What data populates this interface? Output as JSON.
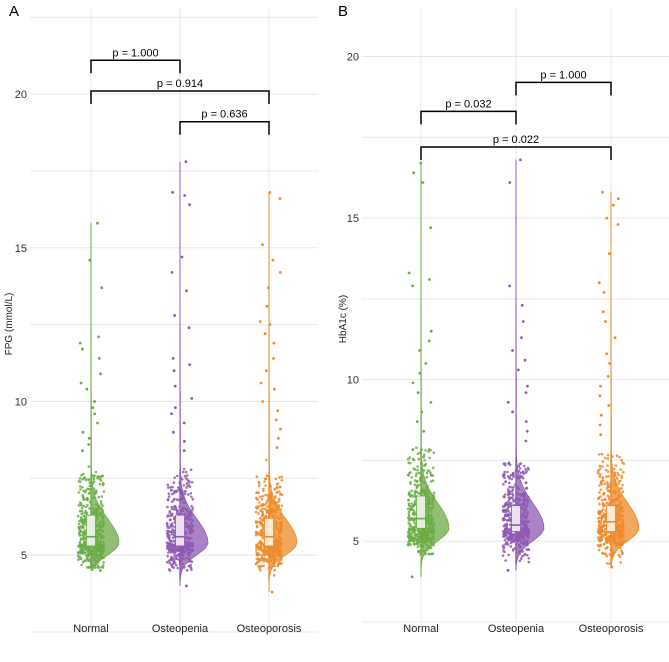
{
  "chart_data": [
    {
      "type": "raincloud",
      "panel": "A",
      "title": "",
      "xlabel": "",
      "ylabel": "FPG (mmol/L)",
      "ylim": [
        2.5,
        22.8
      ],
      "yticks": [
        5,
        10,
        15,
        20
      ],
      "categories": [
        "Normal",
        "Osteopenia",
        "Osteoporosis"
      ],
      "colors": [
        "#6aab45",
        "#8e59b0",
        "#ee8a2a"
      ],
      "groups": [
        {
          "name": "Normal",
          "median": 5.6,
          "q1": 5.3,
          "q3": 6.3,
          "whisker_low": 4.6,
          "whisker_high": 7.6,
          "min": 4.5,
          "max": 15.8,
          "mode": 5.4,
          "outliers": [
            15.8,
            14.6,
            13.7,
            12.1,
            11.9,
            11.7,
            11.4,
            10.9,
            10.6,
            10.4,
            10.0,
            9.8,
            9.6,
            9.3,
            9.0,
            8.8,
            8.6,
            8.4
          ]
        },
        {
          "name": "Osteopenia",
          "median": 5.6,
          "q1": 5.3,
          "q3": 6.3,
          "whisker_low": 4.2,
          "whisker_high": 7.8,
          "min": 4.0,
          "max": 17.8,
          "mode": 5.4,
          "outliers": [
            17.8,
            16.8,
            16.7,
            16.4,
            14.7,
            14.2,
            13.6,
            12.8,
            12.4,
            11.4,
            11.2,
            11.0,
            10.5,
            10.1,
            9.8,
            9.6,
            9.3,
            9.0,
            8.7,
            8.4
          ]
        },
        {
          "name": "Osteoporosis",
          "median": 5.6,
          "q1": 5.3,
          "q3": 6.2,
          "whisker_low": 4.2,
          "whisker_high": 7.6,
          "min": 3.8,
          "max": 16.8,
          "mode": 5.4,
          "outliers": [
            16.8,
            16.6,
            15.1,
            14.6,
            14.2,
            13.7,
            13.1,
            12.6,
            12.5,
            12.2,
            11.9,
            11.4,
            11.0,
            10.6,
            10.4,
            10.0,
            9.7,
            9.4,
            9.1,
            8.8,
            8.5
          ]
        }
      ],
      "comparisons": [
        {
          "a": 0,
          "b": 1,
          "label": "p = 1.000",
          "y": 21.1
        },
        {
          "a": 0,
          "b": 2,
          "label": "p = 0.914",
          "y": 20.1
        },
        {
          "a": 1,
          "b": 2,
          "label": "p = 0.636",
          "y": 19.1
        }
      ]
    },
    {
      "type": "raincloud",
      "panel": "B",
      "title": "",
      "xlabel": "",
      "ylabel": "HbA1c (%)",
      "ylim": [
        2.5,
        21.5
      ],
      "yticks": [
        5,
        10,
        15,
        20
      ],
      "categories": [
        "Normal",
        "Osteopenia",
        "Osteoporosis"
      ],
      "colors": [
        "#6aab45",
        "#8e59b0",
        "#ee8a2a"
      ],
      "groups": [
        {
          "name": "Normal",
          "median": 5.7,
          "q1": 5.4,
          "q3": 6.4,
          "whisker_low": 4.6,
          "whisker_high": 7.9,
          "min": 3.9,
          "max": 16.7,
          "mode": 5.4,
          "outliers": [
            16.7,
            16.4,
            16.1,
            14.7,
            13.3,
            13.1,
            12.9,
            11.5,
            11.2,
            10.9,
            10.5,
            10.2,
            9.9,
            9.6,
            9.3,
            9.0,
            8.7,
            8.4
          ]
        },
        {
          "name": "Osteopenia",
          "median": 5.5,
          "q1": 5.3,
          "q3": 6.1,
          "whisker_low": 4.3,
          "whisker_high": 7.6,
          "min": 4.1,
          "max": 16.8,
          "mode": 5.4,
          "outliers": [
            16.8,
            16.1,
            12.9,
            12.3,
            11.8,
            11.3,
            10.9,
            10.6,
            10.3,
            9.8,
            9.6,
            9.3,
            9.0,
            8.7,
            8.4,
            8.1
          ]
        },
        {
          "name": "Osteoporosis",
          "median": 5.6,
          "q1": 5.3,
          "q3": 6.1,
          "whisker_low": 4.3,
          "whisker_high": 7.7,
          "min": 4.2,
          "max": 15.8,
          "mode": 5.4,
          "outliers": [
            15.8,
            15.6,
            15.4,
            15.0,
            14.8,
            13.9,
            13.0,
            12.7,
            12.1,
            11.8,
            11.3,
            10.8,
            10.5,
            10.1,
            9.8,
            9.5,
            9.2,
            8.9,
            8.6,
            8.3
          ]
        }
      ],
      "comparisons": [
        {
          "a": 0,
          "b": 1,
          "label": "p = 0.032",
          "y": 18.3
        },
        {
          "a": 0,
          "b": 2,
          "label": "p = 0.022",
          "y": 17.2
        },
        {
          "a": 1,
          "b": 2,
          "label": "p = 1.000",
          "y": 19.2
        }
      ]
    }
  ]
}
